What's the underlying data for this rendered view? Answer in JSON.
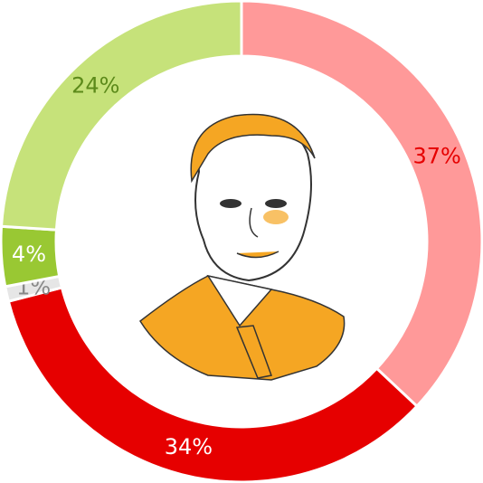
{
  "chart_data": {
    "type": "pie",
    "donut": true,
    "values": [
      37,
      34,
      1,
      4,
      24
    ],
    "value_labels": [
      "37%",
      "34%",
      "1%",
      "4%",
      "24%"
    ],
    "colors": [
      "#ff9999",
      "#e60000",
      "#e6e6e6",
      "#99c833",
      "#c6e27a"
    ],
    "label_colors": [
      "#e60000",
      "#ffffff",
      "#888888",
      "#ffffff",
      "#5c8a1a"
    ]
  }
}
